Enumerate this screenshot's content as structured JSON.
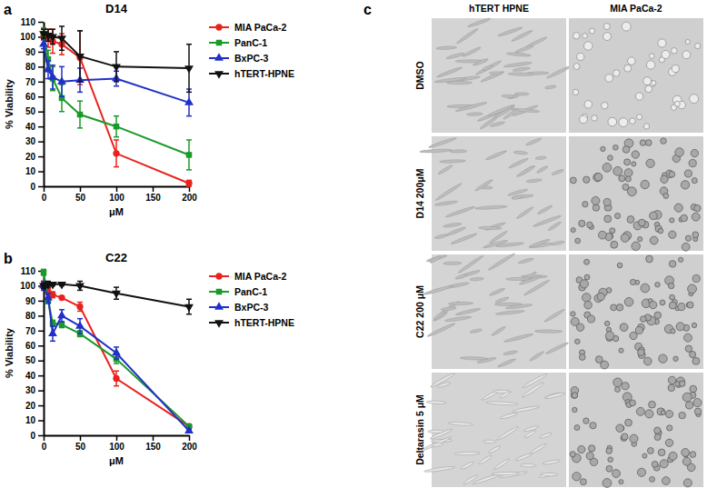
{
  "chart_data": [
    {
      "type": "line",
      "title": "D14",
      "annotations": [
        "a"
      ],
      "x_label": "μM",
      "y_label": "% Viability",
      "x": [
        0,
        6.25,
        12.5,
        25,
        50,
        100,
        200
      ],
      "xlim": [
        0,
        200
      ],
      "xticks": [
        0,
        50,
        100,
        150,
        200
      ],
      "ylim": [
        0,
        110
      ],
      "yticks": [
        0,
        10,
        20,
        30,
        40,
        50,
        60,
        70,
        80,
        90,
        100,
        110
      ],
      "legend": "right",
      "series": [
        {
          "name": "MIA PaCa-2",
          "color": "#e8231d",
          "marker": "circle",
          "values": [
            100,
            99,
            97,
            95,
            86,
            22,
            2
          ],
          "errors": [
            5,
            6,
            8,
            7,
            18,
            9,
            2
          ]
        },
        {
          "name": "PanC-1",
          "color": "#1a9a28",
          "marker": "square",
          "values": [
            102,
            85,
            72,
            59,
            48,
            40,
            21
          ],
          "errors": [
            4,
            6,
            8,
            9,
            9,
            7,
            10
          ]
        },
        {
          "name": "BxPC-3",
          "color": "#2030c8",
          "marker": "triangle-up",
          "values": [
            95,
            78,
            73,
            70,
            71,
            72,
            56
          ],
          "errors": [
            3,
            6,
            8,
            10,
            8,
            5,
            9
          ]
        },
        {
          "name": "hTERT-HPNE",
          "color": "#111111",
          "marker": "triangle-down",
          "values": [
            102,
            101,
            100,
            99,
            87,
            80,
            79
          ],
          "errors": [
            3,
            4,
            5,
            8,
            17,
            10,
            16
          ]
        }
      ]
    },
    {
      "type": "line",
      "title": "C22",
      "annotations": [
        "b"
      ],
      "x_label": "μM",
      "y_label": "% Viability",
      "x": [
        0,
        6.25,
        12.5,
        25,
        50,
        100,
        200
      ],
      "xlim": [
        0,
        200
      ],
      "xticks": [
        0,
        50,
        100,
        150,
        200
      ],
      "ylim": [
        0,
        110
      ],
      "yticks": [
        0,
        10,
        20,
        30,
        40,
        50,
        60,
        70,
        80,
        90,
        100,
        110
      ],
      "legend": "right",
      "series": [
        {
          "name": "MIA PaCa-2",
          "color": "#e8231d",
          "marker": "circle",
          "values": [
            100,
            96,
            94,
            92,
            86,
            38,
            6
          ],
          "errors": [
            3,
            2,
            2,
            1,
            3,
            5,
            1
          ]
        },
        {
          "name": "PanC-1",
          "color": "#1a9a28",
          "marker": "square",
          "values": [
            109,
            90,
            75,
            74,
            68,
            51,
            6
          ],
          "errors": [
            2,
            2,
            2,
            2,
            2,
            3,
            1
          ]
        },
        {
          "name": "BxPC-3",
          "color": "#2030c8",
          "marker": "triangle-up",
          "values": [
            100,
            92,
            68,
            80,
            73,
            55,
            3
          ],
          "errors": [
            3,
            3,
            5,
            4,
            5,
            4,
            1
          ]
        },
        {
          "name": "hTERT-HPNE",
          "color": "#111111",
          "marker": "triangle-down",
          "values": [
            100,
            101,
            101,
            101,
            100,
            95,
            86
          ],
          "errors": [
            2,
            2,
            1,
            1,
            3,
            4,
            5
          ]
        }
      ]
    }
  ],
  "panel_c": {
    "label": "c",
    "columns": [
      "hTERT HPNE",
      "MIA PaCa-2"
    ],
    "rows": [
      "DMSO",
      "D14 200μM",
      "C22 200 μM",
      "Deltarasin 5 μM"
    ]
  }
}
